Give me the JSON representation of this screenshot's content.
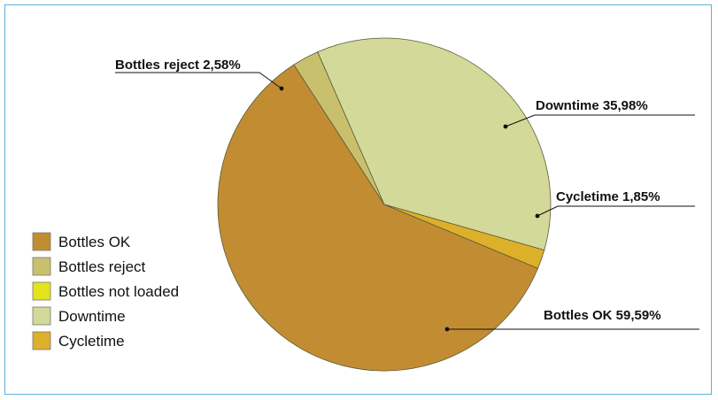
{
  "chart_data": {
    "type": "pie",
    "title": "",
    "slices": [
      {
        "name": "Bottles OK",
        "value": 59.59,
        "label": "Bottles OK 59,59%",
        "color": "#c28d32"
      },
      {
        "name": "Bottles reject",
        "value": 2.58,
        "label": "Bottles reject 2,58%",
        "color": "#c9c06e"
      },
      {
        "name": "Bottles not loaded",
        "value": 0,
        "label": "",
        "color": "#e3e31f"
      },
      {
        "name": "Downtime",
        "value": 35.98,
        "label": "Downtime 35,98%",
        "color": "#d3d998"
      },
      {
        "name": "Cycletime",
        "value": 1.85,
        "label": "Cycletime 1,85%",
        "color": "#ddb02a"
      }
    ],
    "legend": {
      "placement": "bottom-left",
      "items": [
        "Bottles OK",
        "Bottles reject",
        "Bottles not loaded",
        "Downtime",
        "Cycletime"
      ]
    },
    "frame_color": "#5ab3d6"
  }
}
